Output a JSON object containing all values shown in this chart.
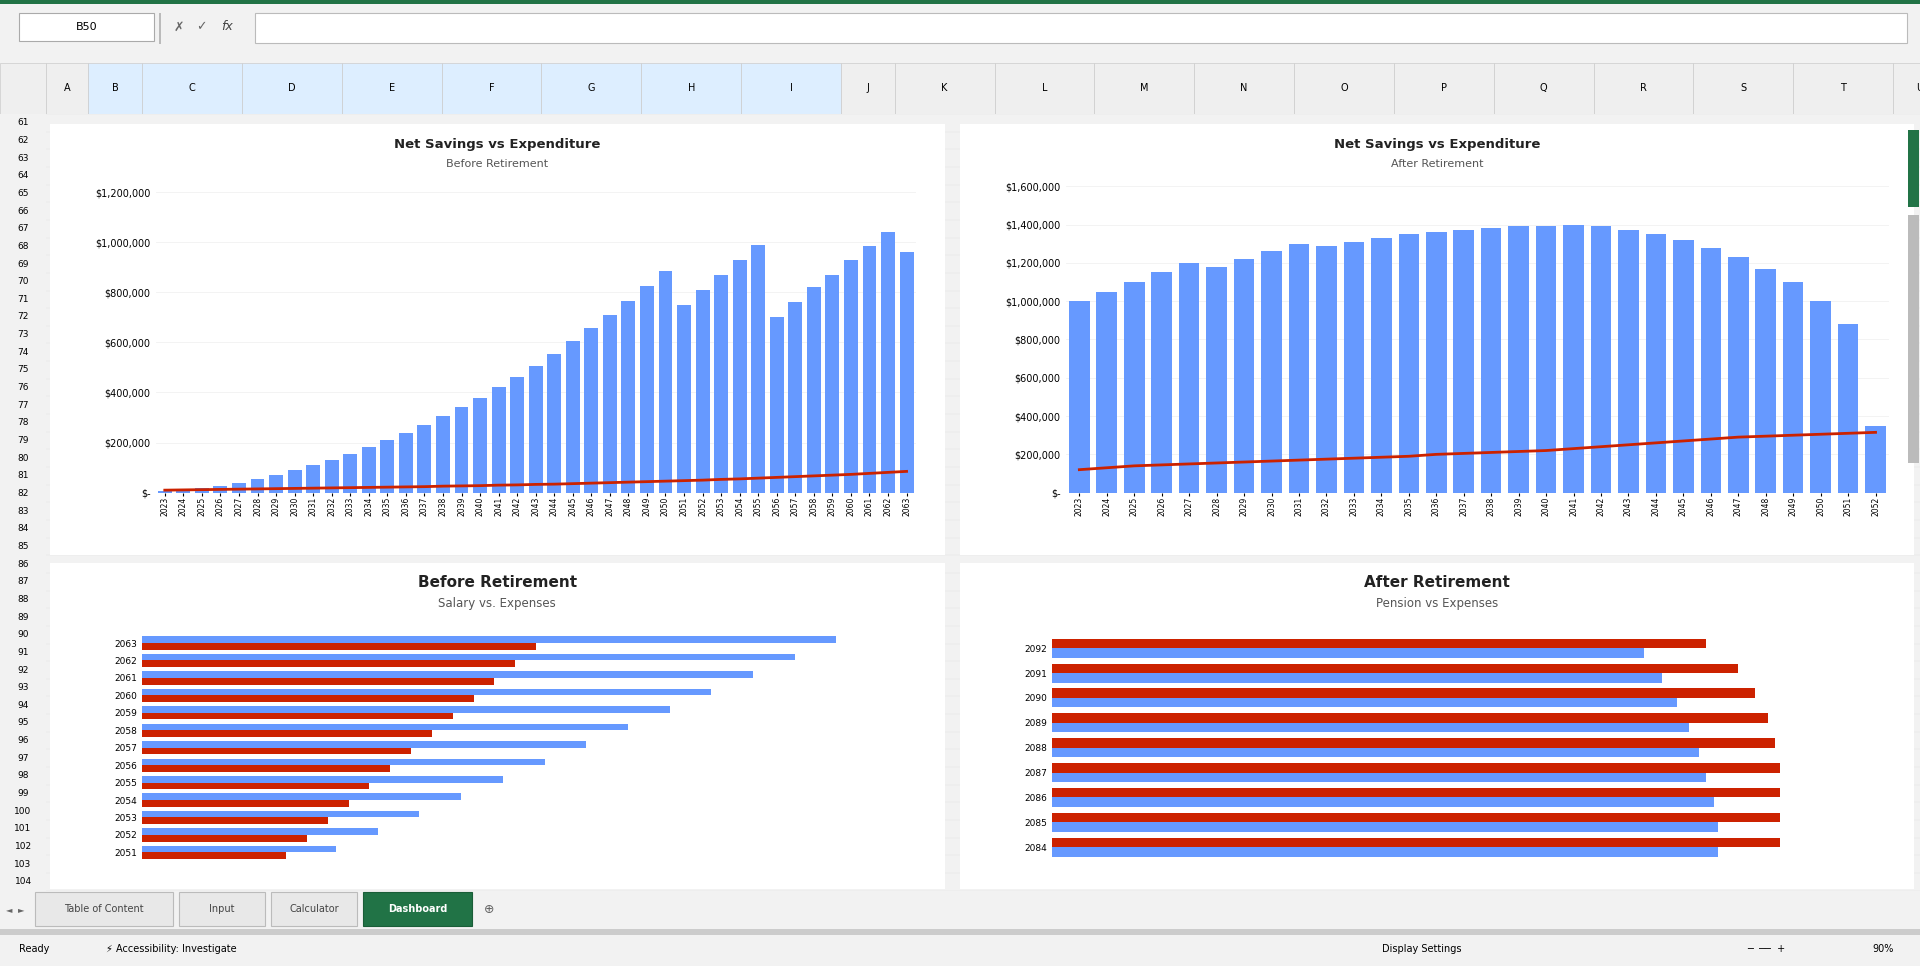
{
  "chart1_title": "Net Savings vs Expenditure",
  "chart1_subtitle": "Before Retirement",
  "chart2_title": "Net Savings vs Expenditure",
  "chart2_subtitle": "After Retirement",
  "chart3_title": "Before Retirement",
  "chart3_subtitle": "Salary vs. Expenses",
  "chart4_title": "After Retirement",
  "chart4_subtitle": "Pension vs Expenses",
  "before_years": [
    2023,
    2024,
    2025,
    2026,
    2027,
    2028,
    2029,
    2030,
    2031,
    2032,
    2033,
    2034,
    2035,
    2036,
    2037,
    2038,
    2039,
    2040,
    2041,
    2042,
    2043,
    2044,
    2045,
    2046,
    2047,
    2048,
    2049,
    2050,
    2051,
    2052,
    2053,
    2054,
    2055,
    2056,
    2057,
    2058,
    2059,
    2060,
    2061,
    2062,
    2063
  ],
  "before_savings": [
    5000,
    10000,
    18000,
    28000,
    40000,
    55000,
    72000,
    90000,
    110000,
    132000,
    156000,
    182000,
    210000,
    240000,
    272000,
    306000,
    342000,
    380000,
    420000,
    462000,
    507000,
    554000,
    604000,
    656000,
    710000,
    767000,
    826000,
    887000,
    750000,
    810000,
    870000,
    930000,
    990000,
    700000,
    760000,
    820000,
    870000,
    930000,
    985000,
    1040000,
    960000
  ],
  "before_expenditure": [
    10000,
    11000,
    12000,
    13000,
    14000,
    15000,
    16000,
    17000,
    18000,
    19000,
    20000,
    21000,
    22000,
    23000,
    24000,
    26000,
    27000,
    28000,
    30000,
    31000,
    33000,
    34000,
    36000,
    38000,
    40000,
    42000,
    44000,
    46000,
    48000,
    50000,
    53000,
    55000,
    58000,
    61000,
    64000,
    67000,
    70000,
    73000,
    77000,
    81000,
    85000
  ],
  "after_years": [
    2023,
    2024,
    2025,
    2026,
    2027,
    2028,
    2029,
    2030,
    2031,
    2032,
    2033,
    2034,
    2035,
    2036,
    2037,
    2038,
    2039,
    2040,
    2041,
    2042,
    2043,
    2044,
    2045,
    2046,
    2047,
    2048,
    2049,
    2050,
    2051,
    2052
  ],
  "after_savings": [
    1000000,
    1050000,
    1100000,
    1150000,
    1200000,
    1180000,
    1220000,
    1260000,
    1300000,
    1290000,
    1310000,
    1330000,
    1350000,
    1360000,
    1370000,
    1380000,
    1390000,
    1395000,
    1400000,
    1390000,
    1370000,
    1350000,
    1320000,
    1280000,
    1230000,
    1170000,
    1100000,
    1000000,
    880000,
    350000
  ],
  "after_expenditure": [
    120000,
    130000,
    140000,
    145000,
    150000,
    155000,
    160000,
    165000,
    170000,
    175000,
    180000,
    185000,
    190000,
    200000,
    205000,
    210000,
    215000,
    220000,
    230000,
    240000,
    250000,
    260000,
    270000,
    280000,
    290000,
    295000,
    300000,
    305000,
    310000,
    315000
  ],
  "bar_color": "#6699FF",
  "line_color": "#CC2200",
  "salary_color": "#6699FF",
  "expense_color": "#CC2200",
  "excel_bg": "#F2F2F2",
  "border_color": "#5B9BD5"
}
